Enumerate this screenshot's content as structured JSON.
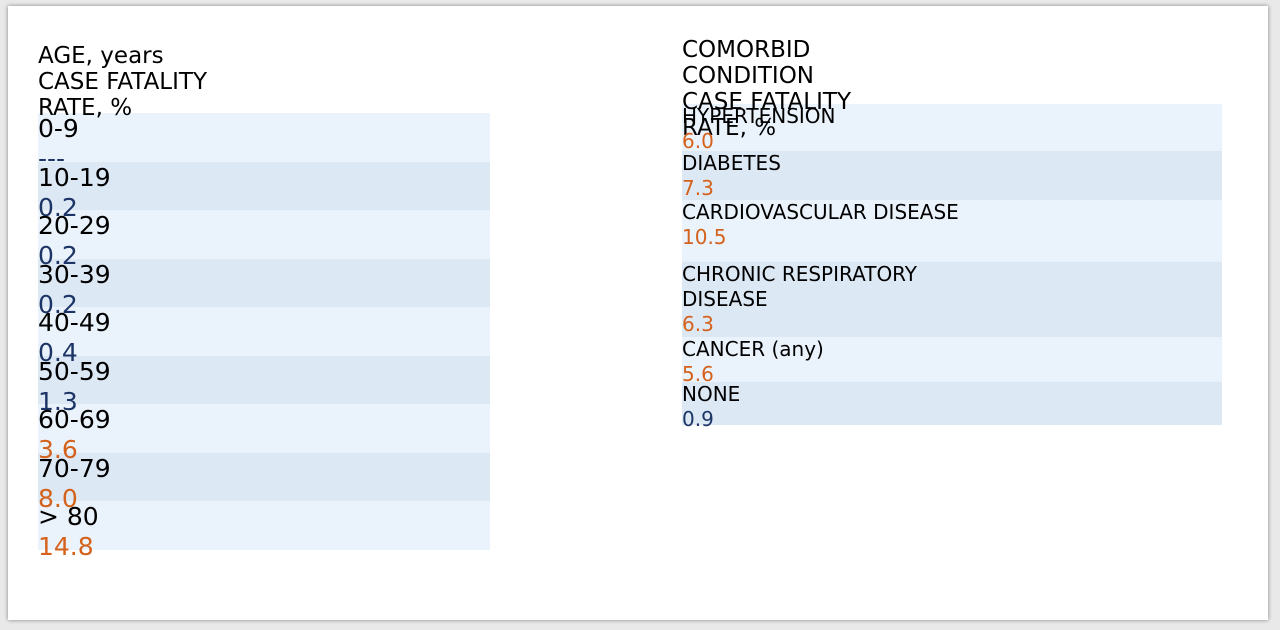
{
  "tables": [
    {
      "header": [
        "AGE, years",
        "CASE FATALITY RATE, %"
      ],
      "rows": [
        {
          "cells": [
            "0-9",
            "---"
          ],
          "color": "#1c3566"
        },
        {
          "cells": [
            "10-19",
            "0.2"
          ],
          "color": "#1c3566"
        },
        {
          "cells": [
            "20-29",
            "0.2"
          ],
          "color": "#1c3566"
        },
        {
          "cells": [
            "30-39",
            "0.2"
          ],
          "color": "#1c3566"
        },
        {
          "cells": [
            "40-49",
            "0.4"
          ],
          "color": "#1c3566"
        },
        {
          "cells": [
            "50-59",
            "1.3"
          ],
          "color": "#1c3566"
        },
        {
          "cells": [
            "60-69",
            "3.6"
          ],
          "color": "#d4621c"
        },
        {
          "cells": [
            "70-79",
            "8.0"
          ],
          "color": "#d4621c"
        },
        {
          "cells": [
            "> 80",
            "14.8"
          ],
          "color": "#d4621c"
        }
      ]
    },
    {
      "header": [
        "COMORBID CONDITION",
        "CASE FATALITY RATE, %"
      ],
      "rows": [
        {
          "cells": [
            "HYPERTENSION",
            "6.0"
          ],
          "color": "#d4621c"
        },
        {
          "cells": [
            "DIABETES",
            "7.3"
          ],
          "color": "#d4621c"
        },
        {
          "cells": [
            "CARDIOVASCULAR DISEASE",
            "10.5"
          ],
          "color": "#d4621c"
        },
        {
          "cells": [
            "CHRONIC RESPIRATORY DISEASE",
            "6.3"
          ],
          "color": "#d4621c"
        },
        {
          "cells": [
            "CANCER (any)",
            "5.6"
          ],
          "color": "#d4621c"
        },
        {
          "cells": [
            "NONE",
            "0.9"
          ],
          "color": "#1c3566"
        }
      ]
    }
  ]
}
